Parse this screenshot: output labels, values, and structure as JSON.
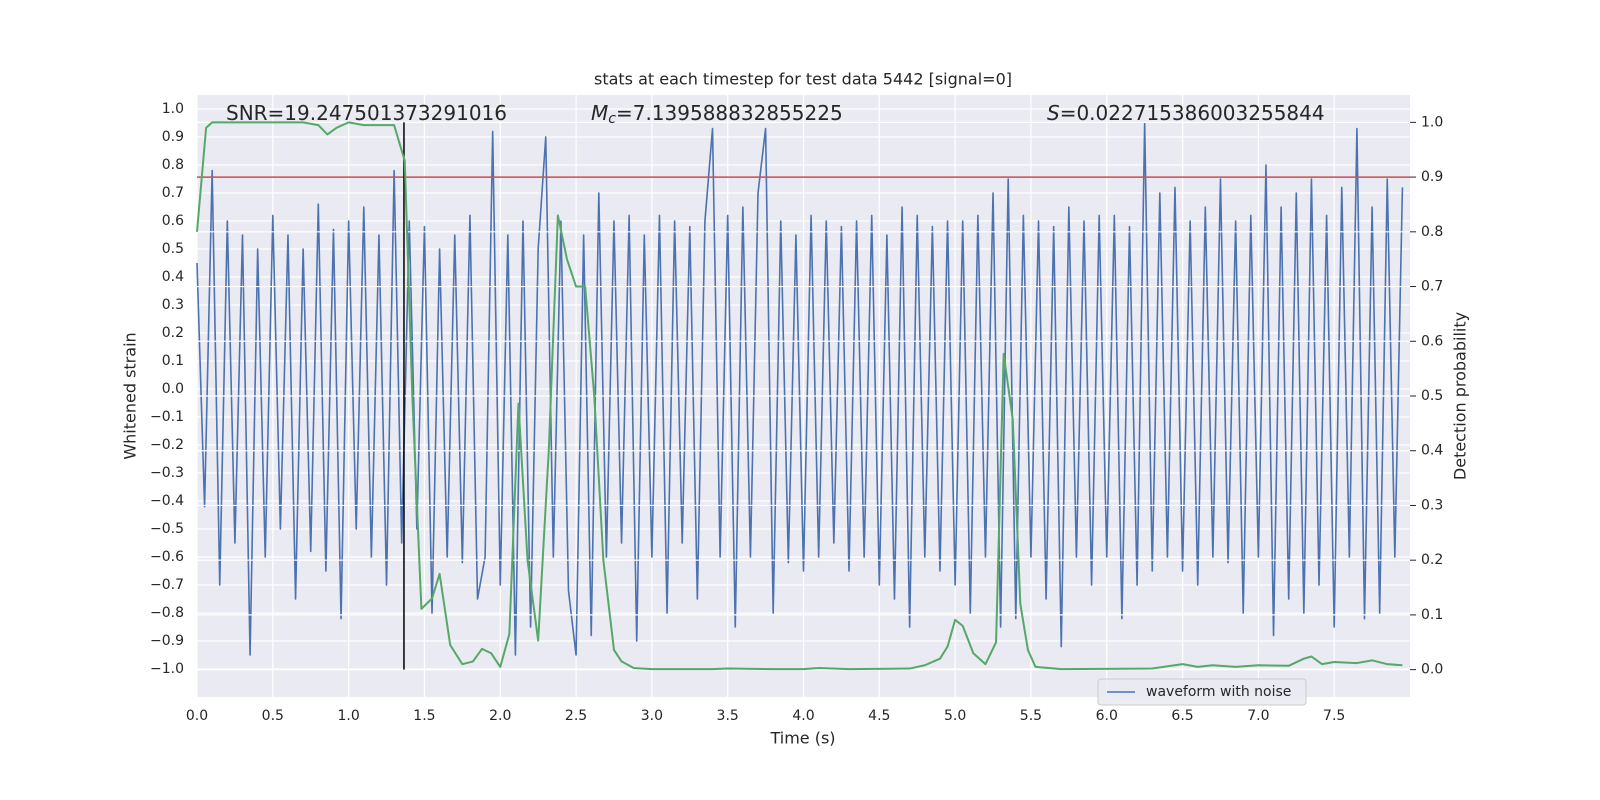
{
  "chart_data": {
    "type": "line",
    "title": "stats at each timestep for test data 5442 [signal=0]",
    "xlabel": "Time (s)",
    "ylabel": "Whitened strain",
    "y2label": "Detection probability",
    "xlim": [
      0,
      8
    ],
    "ylim": [
      -1.1,
      1.05
    ],
    "y2lim": [
      -0.05,
      1.05
    ],
    "grid": true,
    "legend": "lower right",
    "xticks": [
      {
        "value": 0,
        "label": "0.0"
      },
      {
        "value": 0.5,
        "label": "0.5"
      },
      {
        "value": 1,
        "label": "1.0"
      },
      {
        "value": 1.5,
        "label": "1.5"
      },
      {
        "value": 2,
        "label": "2.0"
      },
      {
        "value": 2.5,
        "label": "2.5"
      },
      {
        "value": 3,
        "label": "3.0"
      },
      {
        "value": 3.5,
        "label": "3.5"
      },
      {
        "value": 4,
        "label": "4.0"
      },
      {
        "value": 4.5,
        "label": "4.5"
      },
      {
        "value": 5,
        "label": "5.0"
      },
      {
        "value": 5.5,
        "label": "5.5"
      },
      {
        "value": 6,
        "label": "6.0"
      },
      {
        "value": 6.5,
        "label": "6.5"
      },
      {
        "value": 7,
        "label": "7.0"
      },
      {
        "value": 7.5,
        "label": "7.5"
      }
    ],
    "yticks": [
      {
        "value": -1,
        "label": "−1.0"
      },
      {
        "value": -0.9,
        "label": "−0.9"
      },
      {
        "value": -0.8,
        "label": "−0.8"
      },
      {
        "value": -0.7,
        "label": "−0.7"
      },
      {
        "value": -0.6,
        "label": "−0.6"
      },
      {
        "value": -0.5,
        "label": "−0.5"
      },
      {
        "value": -0.4,
        "label": "−0.4"
      },
      {
        "value": -0.3,
        "label": "−0.3"
      },
      {
        "value": -0.2,
        "label": "−0.2"
      },
      {
        "value": -0.1,
        "label": "−0.1"
      },
      {
        "value": 0,
        "label": "0.0"
      },
      {
        "value": 0.1,
        "label": "0.1"
      },
      {
        "value": 0.2,
        "label": "0.2"
      },
      {
        "value": 0.3,
        "label": "0.3"
      },
      {
        "value": 0.4,
        "label": "0.4"
      },
      {
        "value": 0.5,
        "label": "0.5"
      },
      {
        "value": 0.6,
        "label": "0.6"
      },
      {
        "value": 0.7,
        "label": "0.7"
      },
      {
        "value": 0.8,
        "label": "0.8"
      },
      {
        "value": 0.9,
        "label": "0.9"
      },
      {
        "value": 1,
        "label": "1.0"
      }
    ],
    "y2ticks": [
      {
        "value": 0,
        "label": "0.0"
      },
      {
        "value": 0.1,
        "label": "0.1"
      },
      {
        "value": 0.2,
        "label": "0.2"
      },
      {
        "value": 0.3,
        "label": "0.3"
      },
      {
        "value": 0.4,
        "label": "0.4"
      },
      {
        "value": 0.5,
        "label": "0.5"
      },
      {
        "value": 0.6,
        "label": "0.6"
      },
      {
        "value": 0.7,
        "label": "0.7"
      },
      {
        "value": 0.8,
        "label": "0.8"
      },
      {
        "value": 0.9,
        "label": "0.9"
      },
      {
        "value": 1,
        "label": "1.0"
      }
    ],
    "series": [
      {
        "name": "waveform with noise",
        "color": "#4c72b0",
        "x": [
          0,
          0.05,
          0.1,
          0.15,
          0.2,
          0.25,
          0.3,
          0.35,
          0.4,
          0.45,
          0.5,
          0.55,
          0.6,
          0.65,
          0.7,
          0.75,
          0.8,
          0.85,
          0.9,
          0.95,
          1,
          1.05,
          1.1,
          1.15,
          1.2,
          1.25,
          1.3,
          1.35,
          1.4,
          1.45,
          1.5,
          1.55,
          1.6,
          1.65,
          1.7,
          1.75,
          1.8,
          1.85,
          1.9,
          1.95,
          2,
          2.05,
          2.1,
          2.15,
          2.2,
          2.25,
          2.3,
          2.35,
          2.4,
          2.45,
          2.5,
          2.55,
          2.6,
          2.65,
          2.7,
          2.75,
          2.8,
          2.85,
          2.9,
          2.95,
          3,
          3.05,
          3.1,
          3.15,
          3.2,
          3.25,
          3.3,
          3.35,
          3.4,
          3.45,
          3.5,
          3.55,
          3.6,
          3.65,
          3.7,
          3.75,
          3.8,
          3.85,
          3.9,
          3.95,
          4,
          4.05,
          4.1,
          4.15,
          4.2,
          4.25,
          4.3,
          4.35,
          4.4,
          4.45,
          4.5,
          4.55,
          4.6,
          4.65,
          4.7,
          4.75,
          4.8,
          4.85,
          4.9,
          4.95,
          5,
          5.05,
          5.1,
          5.15,
          5.2,
          5.25,
          5.3,
          5.35,
          5.4,
          5.45,
          5.5,
          5.55,
          5.6,
          5.65,
          5.7,
          5.75,
          5.8,
          5.85,
          5.9,
          5.95,
          6,
          6.05,
          6.1,
          6.15,
          6.2,
          6.25,
          6.3,
          6.35,
          6.4,
          6.45,
          6.5,
          6.55,
          6.6,
          6.65,
          6.7,
          6.75,
          6.8,
          6.85,
          6.9,
          6.95,
          7,
          7.05,
          7.1,
          7.15,
          7.2,
          7.25,
          7.3,
          7.35,
          7.4,
          7.45,
          7.5,
          7.55,
          7.6,
          7.65,
          7.7,
          7.75,
          7.8,
          7.85,
          7.9,
          7.95
        ],
        "values": [
          0.45,
          -0.42,
          0.78,
          -0.7,
          0.6,
          -0.55,
          0.55,
          -0.95,
          0.5,
          -0.6,
          0.62,
          -0.5,
          0.55,
          -0.75,
          0.5,
          -0.58,
          0.66,
          -0.65,
          0.57,
          -0.82,
          0.6,
          -0.5,
          0.65,
          -0.6,
          0.55,
          -0.7,
          0.78,
          -0.55,
          0.6,
          -0.5,
          0.58,
          -0.8,
          0.5,
          -0.6,
          0.55,
          -0.62,
          0.62,
          -0.75,
          -0.6,
          0.92,
          -0.7,
          0.55,
          -0.95,
          0.6,
          -0.85,
          0.5,
          0.9,
          -0.6,
          0.6,
          -0.72,
          -0.95,
          0.55,
          -0.88,
          0.7,
          -0.6,
          0.6,
          -0.55,
          0.62,
          -0.9,
          0.55,
          -0.6,
          0.62,
          -0.8,
          0.6,
          -0.55,
          0.58,
          -0.75,
          0.6,
          0.93,
          -0.6,
          0.62,
          -0.85,
          0.65,
          -0.6,
          0.7,
          0.93,
          -0.8,
          0.6,
          -0.62,
          0.55,
          -0.65,
          0.62,
          -0.6,
          0.6,
          -0.55,
          0.58,
          -0.65,
          0.6,
          -0.6,
          0.62,
          -0.7,
          0.55,
          -0.75,
          0.65,
          -0.85,
          0.62,
          -0.6,
          0.58,
          -0.65,
          0.6,
          -0.7,
          0.6,
          -0.8,
          0.62,
          -0.6,
          0.7,
          -0.85,
          0.75,
          -0.82,
          0.62,
          -0.6,
          0.6,
          -0.75,
          0.58,
          -0.92,
          0.65,
          -0.6,
          0.6,
          -0.7,
          0.62,
          -0.6,
          0.62,
          -0.82,
          0.58,
          -0.7,
          0.95,
          -0.65,
          0.7,
          -0.6,
          0.72,
          -0.65,
          0.6,
          -0.7,
          0.65,
          -0.6,
          0.75,
          -0.62,
          0.6,
          -0.8,
          0.62,
          -0.6,
          0.8,
          -0.88,
          0.65,
          -0.75,
          0.7,
          -0.8,
          0.75,
          -0.7,
          0.62,
          -0.85,
          0.72,
          -0.6,
          0.93,
          -0.82,
          0.65,
          -0.8,
          0.75,
          -0.6,
          0.72
        ]
      },
      {
        "color": "#55a868",
        "axis": "y2",
        "x": [
          0,
          0.06,
          0.1,
          0.2,
          0.3,
          0.4,
          0.5,
          0.6,
          0.7,
          0.8,
          0.86,
          0.92,
          1.0,
          1.1,
          1.2,
          1.3,
          1.37,
          1.42,
          1.48,
          1.55,
          1.6,
          1.67,
          1.75,
          1.82,
          1.88,
          1.94,
          2.0,
          2.06,
          2.12,
          2.18,
          2.25,
          2.32,
          2.38,
          2.44,
          2.5,
          2.56,
          2.62,
          2.68,
          2.75,
          2.8,
          2.88,
          3.0,
          3.4,
          3.5,
          3.8,
          4.0,
          4.1,
          4.3,
          4.7,
          4.8,
          4.9,
          4.95,
          5.0,
          5.05,
          5.12,
          5.2,
          5.27,
          5.32,
          5.38,
          5.43,
          5.48,
          5.53,
          5.7,
          6.3,
          6.5,
          6.6,
          6.7,
          6.85,
          7.0,
          7.2,
          7.3,
          7.35,
          7.42,
          7.5,
          7.65,
          7.75,
          7.85,
          7.95
        ],
        "values": [
          0.8,
          0.99,
          1.0,
          1.0,
          1.0,
          1.0,
          1.0,
          1.0,
          1.0,
          0.995,
          0.978,
          0.99,
          1.0,
          0.995,
          0.995,
          0.995,
          0.93,
          0.5,
          0.111,
          0.13,
          0.175,
          0.045,
          0.01,
          0.015,
          0.038,
          0.03,
          0.005,
          0.065,
          0.486,
          0.2,
          0.053,
          0.4,
          0.83,
          0.75,
          0.7,
          0.7,
          0.5,
          0.2,
          0.036,
          0.015,
          0.003,
          0.001,
          0.001,
          0.002,
          0.001,
          0.001,
          0.003,
          0.001,
          0.002,
          0.008,
          0.02,
          0.042,
          0.091,
          0.08,
          0.03,
          0.01,
          0.05,
          0.577,
          0.457,
          0.12,
          0.036,
          0.005,
          0.001,
          0.002,
          0.01,
          0.005,
          0.008,
          0.005,
          0.008,
          0.007,
          0.02,
          0.024,
          0.01,
          0.014,
          0.012,
          0.017,
          0.01,
          0.008
        ]
      }
    ],
    "hlines": [
      {
        "y": 0.9,
        "axis": "y2",
        "color": "#c44e52"
      }
    ],
    "vlines": [
      {
        "x": 1.365,
        "ymin": 0,
        "ymax": 1,
        "axis": "y2",
        "color": "#000000"
      }
    ],
    "annotations": [
      {
        "text": "SNR=19.247501373291016"
      },
      {
        "symbol": "M",
        "subscript": "c",
        "text": "=7.139588832855225"
      },
      {
        "symbol": "S",
        "text": "=0.022715386003255844"
      }
    ]
  }
}
